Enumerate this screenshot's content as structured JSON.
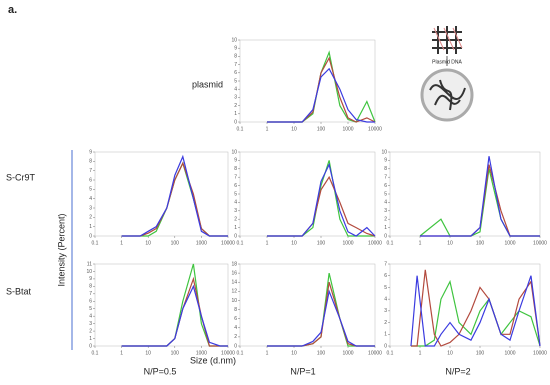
{
  "labels": {
    "panel": "a.",
    "row1": "plasmid",
    "row2": "S-Cr9T",
    "row3": "S-Btat",
    "col1": "N/P=0.5",
    "col2": "N/P=1",
    "col3": "N/P=2",
    "ylabel": "Intensity  (Percent)",
    "xlabel": "Size  (d.nm)",
    "diagram": "Plasmid DNA"
  },
  "chart_data": [
    {
      "type": "line",
      "log_x": true,
      "xlim": [
        0.1,
        10000
      ],
      "xticks": [
        0.1,
        1,
        10,
        100,
        1000,
        10000
      ],
      "ylim": [
        0,
        10
      ],
      "yticks": [
        0,
        1,
        2,
        3,
        4,
        5,
        6,
        7,
        8,
        9,
        10
      ],
      "x": [
        1,
        5,
        10,
        20,
        50,
        100,
        200,
        500,
        1000,
        2000,
        5000,
        10000
      ],
      "series": [
        {
          "color": "#3fc43f",
          "values": [
            0,
            0,
            0,
            0,
            1,
            6,
            8.5,
            2,
            0.3,
            0,
            2.5,
            0
          ]
        },
        {
          "color": "#b34a3e",
          "values": [
            0,
            0,
            0,
            0,
            1.2,
            6,
            7.8,
            3,
            0.5,
            0,
            0.5,
            0
          ]
        },
        {
          "color": "#3b3be0",
          "values": [
            0,
            0,
            0,
            0,
            1.5,
            5.5,
            6.5,
            4,
            1.5,
            0.3,
            0,
            0
          ]
        }
      ]
    },
    {
      "type": "line",
      "log_x": true,
      "xlim": [
        0.1,
        10000
      ],
      "xticks": [
        0.1,
        1,
        10,
        100,
        1000,
        10000
      ],
      "ylim": [
        0,
        9
      ],
      "yticks": [
        0,
        1,
        2,
        3,
        4,
        5,
        6,
        7,
        8,
        9
      ],
      "x": [
        1,
        5,
        10,
        20,
        50,
        100,
        200,
        500,
        1000,
        2000,
        5000,
        10000
      ],
      "series": [
        {
          "color": "#3fc43f",
          "values": [
            0,
            0,
            0,
            0.5,
            3,
            6,
            7.8,
            4,
            0.8,
            0,
            0,
            0
          ]
        },
        {
          "color": "#b34a3e",
          "values": [
            0,
            0,
            0.3,
            0.8,
            3,
            6,
            7.8,
            4.5,
            0.8,
            0,
            0,
            0
          ]
        },
        {
          "color": "#3b3be0",
          "values": [
            0,
            0,
            0.5,
            1,
            3,
            6.5,
            8.5,
            4,
            0.5,
            0,
            0,
            0
          ]
        }
      ]
    },
    {
      "type": "line",
      "log_x": true,
      "xlim": [
        0.1,
        10000
      ],
      "xticks": [
        0.1,
        1,
        10,
        100,
        1000,
        10000
      ],
      "ylim": [
        0,
        10
      ],
      "yticks": [
        0,
        1,
        2,
        3,
        4,
        5,
        6,
        7,
        8,
        9,
        10
      ],
      "x": [
        1,
        5,
        10,
        20,
        50,
        100,
        200,
        500,
        1000,
        2000,
        5000,
        10000
      ],
      "series": [
        {
          "color": "#3fc43f",
          "values": [
            0,
            0,
            0,
            0,
            1,
            6,
            9,
            2,
            0,
            0,
            0,
            0
          ]
        },
        {
          "color": "#b34a3e",
          "values": [
            0,
            0,
            0,
            0,
            1.5,
            5.5,
            7,
            4,
            1.5,
            1,
            0.3,
            0
          ]
        },
        {
          "color": "#3b3be0",
          "values": [
            0,
            0,
            0,
            0,
            1.5,
            6.5,
            8.5,
            3,
            0.5,
            0,
            1,
            0
          ]
        }
      ]
    },
    {
      "type": "line",
      "log_x": true,
      "xlim": [
        0.1,
        10000
      ],
      "xticks": [
        0.1,
        1,
        10,
        100,
        1000,
        10000
      ],
      "ylim": [
        0,
        10
      ],
      "yticks": [
        0,
        1,
        2,
        3,
        4,
        5,
        6,
        7,
        8,
        9,
        10
      ],
      "x": [
        1,
        5,
        10,
        20,
        50,
        100,
        200,
        500,
        1000,
        2000,
        5000,
        10000
      ],
      "series": [
        {
          "color": "#3fc43f",
          "values": [
            0,
            2,
            0,
            0,
            0,
            0.5,
            8,
            2,
            0,
            0,
            0,
            0
          ]
        },
        {
          "color": "#b34a3e",
          "values": [
            0,
            0,
            0,
            0,
            0,
            1,
            8.5,
            3,
            0,
            0,
            0,
            0
          ]
        },
        {
          "color": "#3b3be0",
          "values": [
            0,
            0,
            0,
            0,
            0,
            1,
            9.5,
            2,
            0,
            0,
            0,
            0
          ]
        }
      ]
    },
    {
      "type": "line",
      "log_x": true,
      "xlim": [
        0.1,
        10000
      ],
      "xticks": [
        0.1,
        1,
        10,
        100,
        1000,
        10000
      ],
      "ylim": [
        0,
        11
      ],
      "yticks": [
        0,
        1,
        2,
        3,
        4,
        5,
        6,
        7,
        8,
        9,
        10,
        11
      ],
      "x": [
        1,
        5,
        10,
        20,
        50,
        100,
        200,
        500,
        1000,
        2000,
        5000,
        10000
      ],
      "series": [
        {
          "color": "#3fc43f",
          "values": [
            0,
            0,
            0,
            0,
            0,
            1,
            6,
            11,
            3,
            0,
            0,
            0
          ]
        },
        {
          "color": "#b34a3e",
          "values": [
            0,
            0,
            0,
            0,
            0,
            1,
            5,
            9,
            4,
            0,
            0,
            0
          ]
        },
        {
          "color": "#3b3be0",
          "values": [
            0,
            0,
            0,
            0,
            0,
            1,
            5,
            8,
            4,
            0.5,
            0,
            0
          ]
        }
      ]
    },
    {
      "type": "line",
      "log_x": true,
      "xlim": [
        0.1,
        10000
      ],
      "xticks": [
        0.1,
        1,
        10,
        100,
        1000,
        10000
      ],
      "ylim": [
        0,
        18
      ],
      "yticks": [
        0,
        2,
        4,
        6,
        8,
        10,
        12,
        14,
        16,
        18
      ],
      "x": [
        1,
        5,
        10,
        20,
        50,
        100,
        200,
        500,
        1000,
        2000,
        5000,
        10000
      ],
      "series": [
        {
          "color": "#3fc43f",
          "values": [
            0,
            0,
            0,
            0,
            0.5,
            2,
            16,
            6,
            0,
            0,
            0,
            0
          ]
        },
        {
          "color": "#b34a3e",
          "values": [
            0,
            0,
            0,
            0,
            0.5,
            2,
            14,
            6,
            0.5,
            0,
            0,
            0
          ]
        },
        {
          "color": "#3b3be0",
          "values": [
            0,
            0,
            0,
            0,
            1,
            3,
            12,
            6,
            1,
            0,
            0,
            0
          ]
        }
      ]
    },
    {
      "type": "line",
      "log_x": true,
      "xlim": [
        0.1,
        10000
      ],
      "xticks": [
        0.1,
        1,
        10,
        100,
        1000,
        10000
      ],
      "ylim": [
        0,
        7
      ],
      "yticks": [
        0,
        1,
        2,
        3,
        4,
        5,
        6,
        7
      ],
      "x": [
        0.5,
        0.8,
        1.5,
        3,
        5,
        10,
        20,
        50,
        100,
        200,
        500,
        1000,
        2000,
        5000,
        10000
      ],
      "series": [
        {
          "color": "#3fc43f",
          "values": [
            0,
            0,
            0,
            0.5,
            4,
            5.5,
            2,
            1,
            3,
            4,
            1,
            2,
            3,
            2.5,
            0
          ]
        },
        {
          "color": "#b34a3e",
          "values": [
            0,
            0,
            6.5,
            1,
            0,
            0.3,
            1,
            3,
            5,
            4,
            1,
            1,
            4,
            5.5,
            0
          ]
        },
        {
          "color": "#3b3be0",
          "values": [
            0,
            6,
            0,
            0,
            1,
            2,
            1,
            0.5,
            2,
            4,
            1,
            0.5,
            3,
            6,
            0
          ]
        }
      ]
    }
  ]
}
